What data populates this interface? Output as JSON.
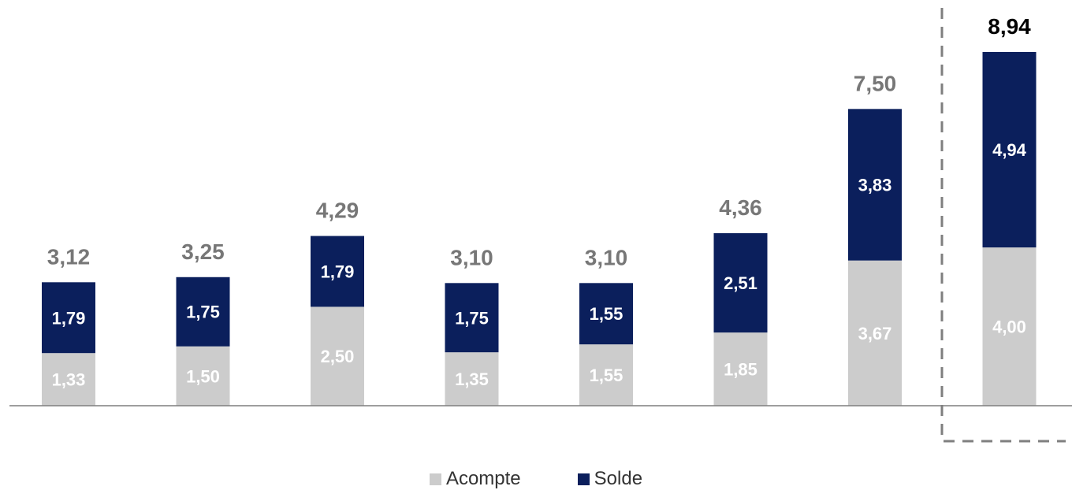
{
  "colors": {
    "acompte": "#cccccc",
    "solde": "#0b1f5c",
    "total_label": "#777777",
    "total_label_highlight": "#000000",
    "segment_label": "#ffffff",
    "axis": "#7f7f7f",
    "highlight_box": "#7f7f7f"
  },
  "chart_data": {
    "type": "bar",
    "stacked": true,
    "categories": [
      "",
      "",
      "",
      "",
      "",
      "",
      "",
      ""
    ],
    "series": [
      {
        "name": "Acompte",
        "values": [
          1.33,
          1.5,
          2.5,
          1.35,
          1.55,
          1.85,
          3.67,
          4.0
        ],
        "labels": [
          "1,33",
          "1,50",
          "2,50",
          "1,35",
          "1,55",
          "1,85",
          "3,67",
          "4,00"
        ]
      },
      {
        "name": "Solde",
        "values": [
          1.79,
          1.75,
          1.79,
          1.75,
          1.55,
          2.51,
          3.83,
          4.94
        ],
        "labels": [
          "1,79",
          "1,75",
          "1,79",
          "1,75",
          "1,55",
          "2,51",
          "3,83",
          "4,94"
        ]
      }
    ],
    "totals": [
      3.12,
      3.25,
      4.29,
      3.1,
      3.1,
      4.36,
      7.5,
      8.94
    ],
    "total_labels": [
      "3,12",
      "3,25",
      "4,29",
      "3,10",
      "3,10",
      "4,36",
      "7,50",
      "8,94"
    ],
    "highlighted_index": 7,
    "ylim": [
      0,
      8.94
    ],
    "grid": false,
    "legend": "bottom-center",
    "title": "",
    "xlabel": "",
    "ylabel": ""
  },
  "legend": {
    "items": [
      "Acompte",
      "Solde"
    ]
  }
}
